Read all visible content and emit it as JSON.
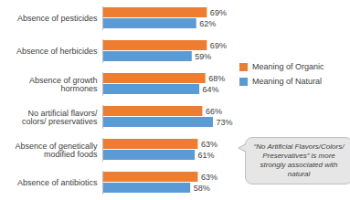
{
  "chart_data": {
    "type": "bar",
    "orientation": "horizontal",
    "categories": [
      "Absence of pesticides",
      "Absence of herbicides",
      "Absence of growth hormones",
      "No artificial flavors/ colors/ preservatives",
      "Absence of genetically modified foods",
      "Absence of antibiotics"
    ],
    "series": [
      {
        "name": "Meaning of Organic",
        "color": "#ed7d31",
        "values": [
          69,
          69,
          68,
          66,
          63,
          63
        ],
        "value_labels": [
          "69%",
          "69%",
          "68%",
          "66%",
          "63%",
          "63%"
        ]
      },
      {
        "name": "Meaning of Natural",
        "color": "#5b9bd5",
        "values": [
          62,
          59,
          64,
          73,
          61,
          58
        ],
        "value_labels": [
          "62%",
          "59%",
          "64%",
          "73%",
          "61%",
          "58%"
        ]
      }
    ],
    "data_labels": true,
    "tick_labels": "y",
    "legend": "right",
    "annotation": "“No Artificial Flavors/Colors/ Preservatives” is more strongly associated with natural"
  }
}
